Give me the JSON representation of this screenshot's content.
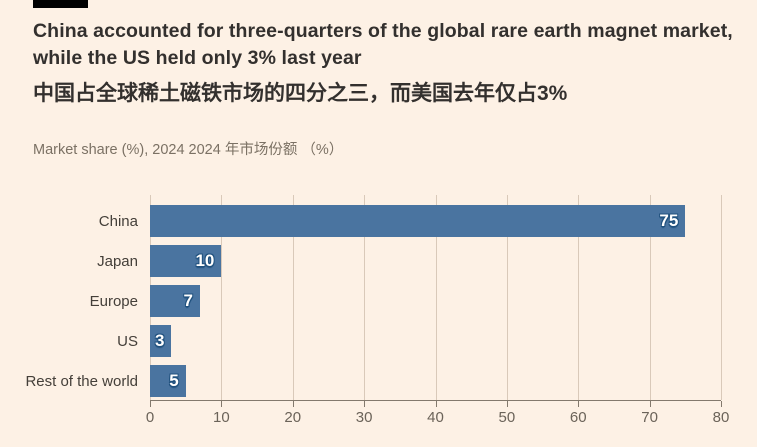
{
  "page": {
    "background": "#fdf1e5"
  },
  "header": {
    "title_line1": "China accounted for three-quarters of the global rare earth magnet market,",
    "title_line2": "while the US held only 3% last year",
    "title_zh": "中国占全球稀土磁铁市场的四分之三，而美国去年仅占3%",
    "subtitle": "Market share (%), 2024  2024 年市场份额 （%）"
  },
  "chart_data": {
    "type": "bar",
    "orientation": "horizontal",
    "title": "China accounted for three-quarters of the global rare earth magnet market, while the US held only 3% last year",
    "subtitle": "Market share (%), 2024",
    "categories": [
      "China",
      "Japan",
      "Europe",
      "US",
      "Rest of the world"
    ],
    "values": [
      75,
      10,
      7,
      3,
      5
    ],
    "x_ticks": [
      "0",
      "10",
      "20",
      "30",
      "40",
      "50",
      "60",
      "70",
      "80"
    ],
    "xlim": [
      0,
      80
    ],
    "grid": true,
    "legend": false,
    "bar_color": "#4a74a0",
    "value_label_color": "#ffffff",
    "value_label_outline": "#20517e",
    "gridline_color": "#d9c9b9",
    "axis_color": "#83796d"
  }
}
